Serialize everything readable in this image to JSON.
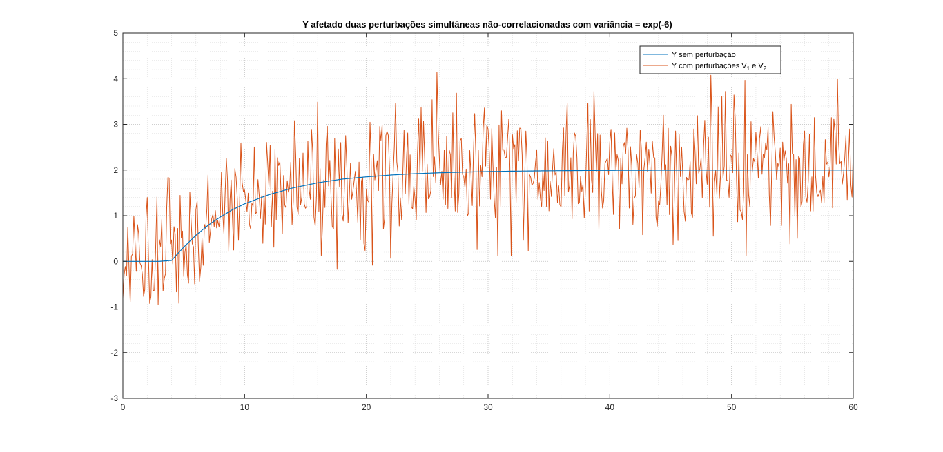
{
  "chart_data": {
    "type": "line",
    "title": "Y afetado duas perturbações simultâneas não-correlacionadas com variância = exp(-6)",
    "xlabel": "",
    "ylabel": "",
    "xlim": [
      0,
      60
    ],
    "ylim": [
      -3,
      5
    ],
    "xticks": [
      0,
      10,
      20,
      30,
      40,
      50,
      60
    ],
    "yticks": [
      -3,
      -2,
      -1,
      0,
      1,
      2,
      3,
      4,
      5
    ],
    "grid": true,
    "minor_grid": true,
    "legend_position": "top-right",
    "series": [
      {
        "name": "Y sem perturbação",
        "color": "#0072BD",
        "model": "step response delayed 4 s, steady state 2, time constant 6 s",
        "x": [
          0,
          1,
          2,
          3,
          4,
          5,
          6,
          7,
          8,
          9,
          10,
          12,
          14,
          16,
          18,
          20,
          22,
          24,
          26,
          28,
          30,
          32,
          34,
          36,
          38,
          40,
          42,
          44,
          46,
          48,
          50,
          52,
          54,
          56,
          58,
          60
        ],
        "values": [
          0,
          0,
          0,
          0,
          0.02,
          0.31,
          0.57,
          0.79,
          0.97,
          1.13,
          1.26,
          1.46,
          1.61,
          1.72,
          1.8,
          1.85,
          1.89,
          1.92,
          1.94,
          1.955,
          1.966,
          1.975,
          1.981,
          1.986,
          1.99,
          1.992,
          1.994,
          1.996,
          1.997,
          1.998,
          1.998,
          1.999,
          1.999,
          1.999,
          2.0,
          2.0
        ]
      },
      {
        "name": "Y com perturbações V",
        "name_sub1": "1",
        "name_mid": " e V",
        "name_sub2": "2",
        "color": "#D95319",
        "sampling": "noisy signal around the nominal response, approx. 0.1 s samples",
        "noise_std": 0.75,
        "samples": 601
      }
    ]
  }
}
